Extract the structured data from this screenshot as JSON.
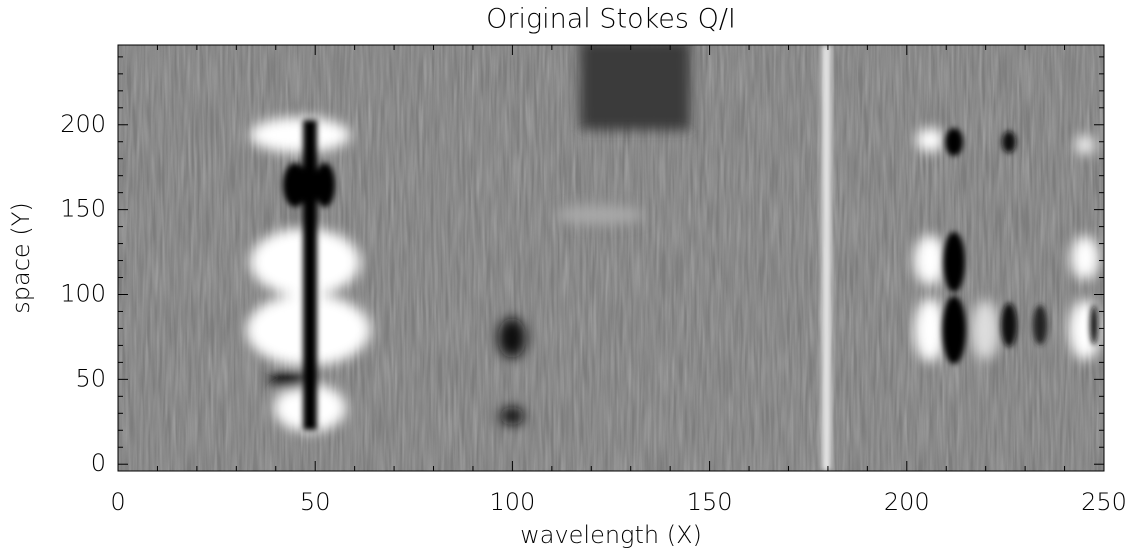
{
  "chart_data": {
    "type": "image",
    "title": "Original Stokes Q/I",
    "xlabel": "wavelength (X)",
    "ylabel": "space (Y)",
    "xlim": [
      0,
      250
    ],
    "xticks": [
      0,
      50,
      100,
      150,
      200,
      250
    ],
    "ylim": [
      -4,
      247
    ],
    "yticks": [
      0,
      50,
      100,
      150,
      200
    ],
    "minor_ticks": 5,
    "colormap": "gray"
  }
}
